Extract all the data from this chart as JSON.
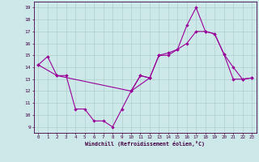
{
  "xlabel": "Windchill (Refroidissement éolien,°C)",
  "bg_color": "#cde8e8",
  "line_color": "#990099",
  "grid_color": "#b0d0cc",
  "yticks": [
    9,
    10,
    11,
    12,
    13,
    14,
    15,
    16,
    17,
    18,
    19
  ],
  "xticks": [
    0,
    1,
    2,
    3,
    4,
    5,
    6,
    7,
    8,
    9,
    10,
    11,
    12,
    13,
    14,
    15,
    16,
    17,
    18,
    19,
    20,
    21,
    22,
    23
  ],
  "lineA_x": [
    0,
    1,
    2,
    3,
    4,
    5,
    6,
    7,
    8,
    9,
    10,
    11,
    12
  ],
  "lineA_y": [
    14.2,
    14.9,
    13.3,
    13.3,
    10.5,
    10.5,
    9.5,
    9.5,
    9.0,
    10.5,
    12.0,
    13.3,
    13.1
  ],
  "lineB_x": [
    0,
    2,
    10,
    12,
    13,
    14,
    15,
    16,
    17,
    18,
    19,
    20,
    21,
    22,
    23
  ],
  "lineB_y": [
    14.2,
    13.3,
    12.0,
    13.1,
    15.0,
    15.0,
    15.5,
    16.0,
    17.0,
    17.0,
    16.8,
    15.1,
    13.0,
    13.0,
    13.1
  ],
  "lineC_x": [
    10,
    11,
    12,
    13,
    14,
    15,
    16,
    17,
    18,
    19,
    20,
    21,
    22,
    23
  ],
  "lineC_y": [
    12.0,
    13.3,
    13.1,
    15.0,
    15.2,
    15.5,
    17.5,
    19.0,
    17.0,
    16.8,
    15.1,
    14.0,
    13.0,
    13.1
  ]
}
